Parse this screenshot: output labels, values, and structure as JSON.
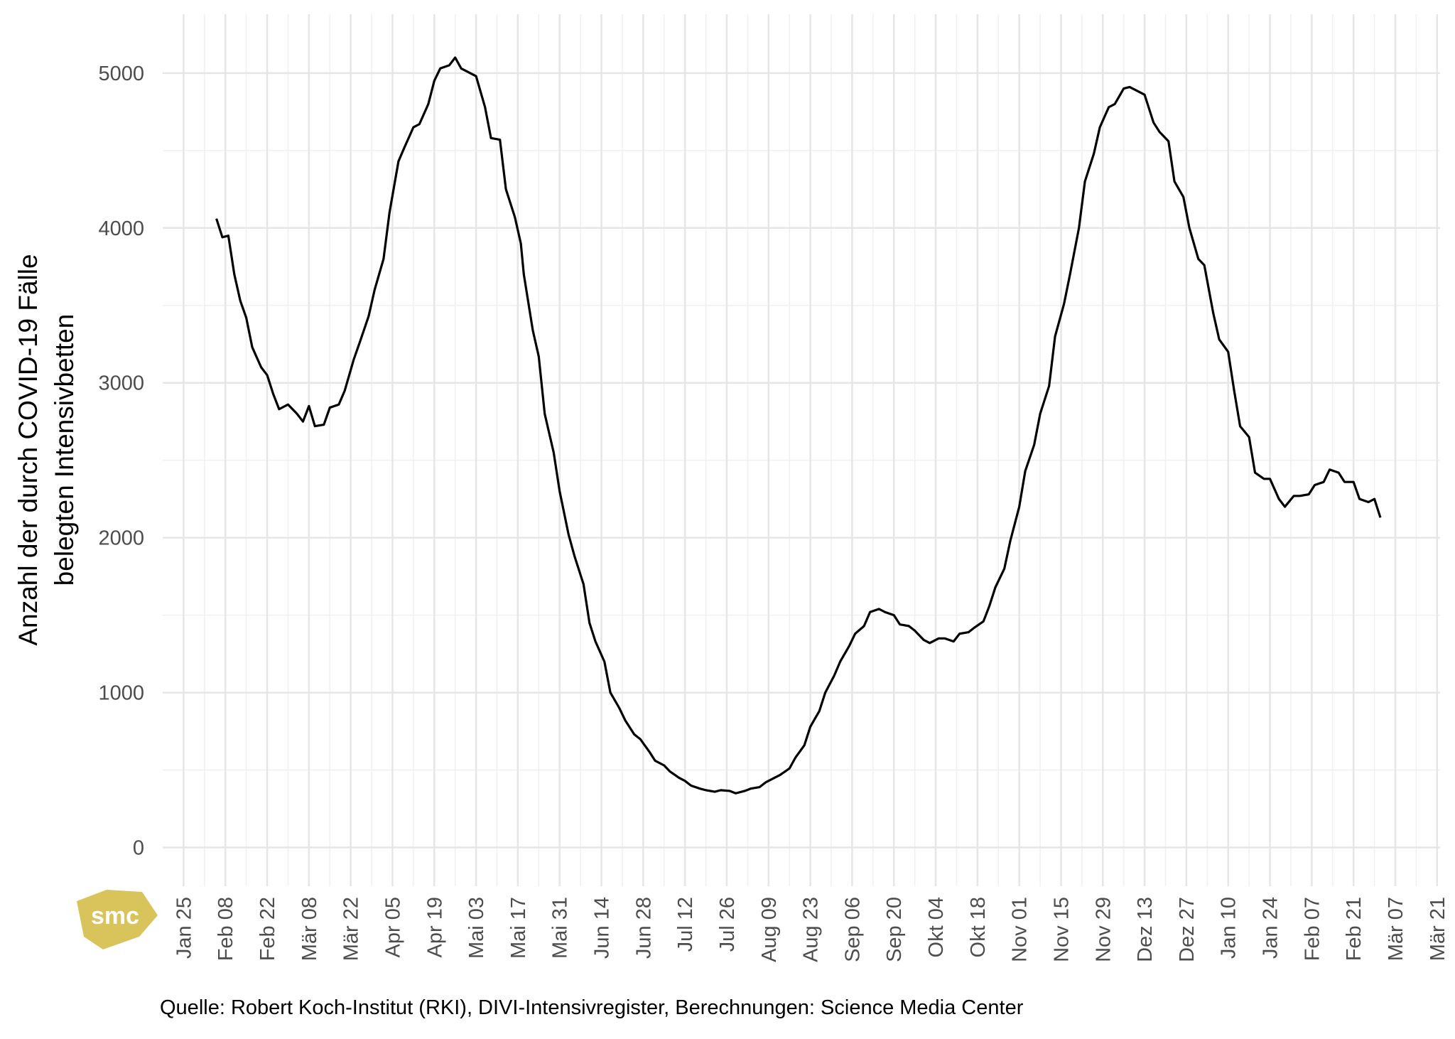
{
  "chart_data": {
    "type": "line",
    "ylabel": [
      "Anzahl der durch COVID-19 Fälle",
      "belegten Intensivbetten"
    ],
    "source": "Quelle: Robert Koch-Institut (RKI), DIVI-Intensivregister, Berechnungen: Science Media Center",
    "logo": "smc",
    "color": "#000000",
    "grid": true,
    "xlim": [
      -7,
      421
    ],
    "ylim": [
      -250,
      5380
    ],
    "yticks": [
      0,
      1000,
      2000,
      3000,
      4000,
      5000
    ],
    "xticks": [
      {
        "value": 0,
        "label": "Jan 25"
      },
      {
        "value": 14,
        "label": "Feb 08"
      },
      {
        "value": 28,
        "label": "Feb 22"
      },
      {
        "value": 42,
        "label": "Mär 08"
      },
      {
        "value": 56,
        "label": "Mär 22"
      },
      {
        "value": 70,
        "label": "Apr 05"
      },
      {
        "value": 84,
        "label": "Apr 19"
      },
      {
        "value": 98,
        "label": "Mai 03"
      },
      {
        "value": 112,
        "label": "Mai 17"
      },
      {
        "value": 126,
        "label": "Mai 31"
      },
      {
        "value": 140,
        "label": "Jun 14"
      },
      {
        "value": 154,
        "label": "Jun 28"
      },
      {
        "value": 168,
        "label": "Jul 12"
      },
      {
        "value": 182,
        "label": "Jul 26"
      },
      {
        "value": 196,
        "label": "Aug 09"
      },
      {
        "value": 210,
        "label": "Aug 23"
      },
      {
        "value": 224,
        "label": "Sep 06"
      },
      {
        "value": 238,
        "label": "Sep 20"
      },
      {
        "value": 252,
        "label": "Okt 04"
      },
      {
        "value": 266,
        "label": "Okt 18"
      },
      {
        "value": 280,
        "label": "Nov 01"
      },
      {
        "value": 294,
        "label": "Nov 15"
      },
      {
        "value": 308,
        "label": "Nov 29"
      },
      {
        "value": 322,
        "label": "Dez 13"
      },
      {
        "value": 336,
        "label": "Dez 27"
      },
      {
        "value": 350,
        "label": "Jan 10"
      },
      {
        "value": 364,
        "label": "Jan 24"
      },
      {
        "value": 378,
        "label": "Feb 07"
      },
      {
        "value": 392,
        "label": "Feb 21"
      },
      {
        "value": 406,
        "label": "Mär 07"
      },
      {
        "value": 420,
        "label": "Mär 21"
      }
    ],
    "x": [
      11,
      13,
      15,
      17,
      19,
      21,
      23,
      26,
      28,
      30,
      32,
      35,
      38,
      40,
      42,
      44,
      47,
      49,
      52,
      54,
      57,
      59,
      62,
      64,
      67,
      69,
      72,
      74,
      77,
      79,
      82,
      84,
      86,
      89,
      91,
      93,
      96,
      98,
      101,
      103,
      106,
      108,
      111,
      113,
      114,
      117,
      119,
      121,
      124,
      126,
      129,
      131,
      134,
      136,
      138,
      141,
      143,
      146,
      148,
      151,
      153,
      156,
      158,
      161,
      163,
      166,
      168,
      170,
      173,
      175,
      178,
      180,
      183,
      185,
      188,
      190,
      193,
      195,
      198,
      200,
      203,
      205,
      208,
      210,
      213,
      215,
      218,
      220,
      223,
      225,
      228,
      230,
      233,
      235,
      238,
      240,
      243,
      245,
      248,
      250,
      253,
      255,
      258,
      260,
      263,
      265,
      268,
      270,
      272,
      275,
      277,
      280,
      282,
      285,
      287,
      290,
      292,
      295,
      297,
      300,
      302,
      305,
      307,
      310,
      312,
      315,
      317,
      320,
      322,
      325,
      327,
      330,
      332,
      335,
      337,
      340,
      342,
      345,
      347,
      350,
      352,
      354,
      357,
      359,
      362,
      364,
      367,
      369,
      372,
      374,
      377,
      379,
      382,
      384,
      387,
      389,
      392,
      394,
      397,
      399,
      401
    ],
    "values": [
      4060,
      3940,
      3950,
      3700,
      3530,
      3420,
      3230,
      3100,
      3050,
      2930,
      2830,
      2860,
      2800,
      2750,
      2850,
      2720,
      2730,
      2840,
      2860,
      2950,
      3150,
      3260,
      3430,
      3600,
      3800,
      4100,
      4430,
      4520,
      4650,
      4670,
      4800,
      4950,
      5030,
      5050,
      5100,
      5030,
      5000,
      4980,
      4780,
      4580,
      4570,
      4250,
      4070,
      3900,
      3700,
      3340,
      3170,
      2800,
      2550,
      2300,
      2020,
      1880,
      1700,
      1450,
      1330,
      1200,
      1000,
      900,
      820,
      730,
      700,
      620,
      560,
      530,
      490,
      450,
      430,
      400,
      380,
      370,
      360,
      370,
      365,
      350,
      365,
      380,
      390,
      420,
      450,
      470,
      510,
      580,
      660,
      780,
      880,
      1000,
      1110,
      1200,
      1300,
      1380,
      1430,
      1520,
      1540,
      1520,
      1500,
      1440,
      1430,
      1400,
      1340,
      1320,
      1350,
      1350,
      1330,
      1380,
      1390,
      1420,
      1460,
      1560,
      1680,
      1800,
      1980,
      2200,
      2430,
      2600,
      2800,
      2980,
      3300,
      3510,
      3700,
      4000,
      4300,
      4480,
      4650,
      4780,
      4800,
      4900,
      4910,
      4880,
      4860,
      4680,
      4620,
      4560,
      4300,
      4200,
      4000,
      3800,
      3760,
      3450,
      3280,
      3200,
      2950,
      2720,
      2650,
      2420,
      2380,
      2380,
      2250,
      2200,
      2270,
      2270,
      2280,
      2340,
      2360,
      2440,
      2420,
      2360,
      2360,
      2250,
      2230,
      2250,
      2130
    ]
  }
}
